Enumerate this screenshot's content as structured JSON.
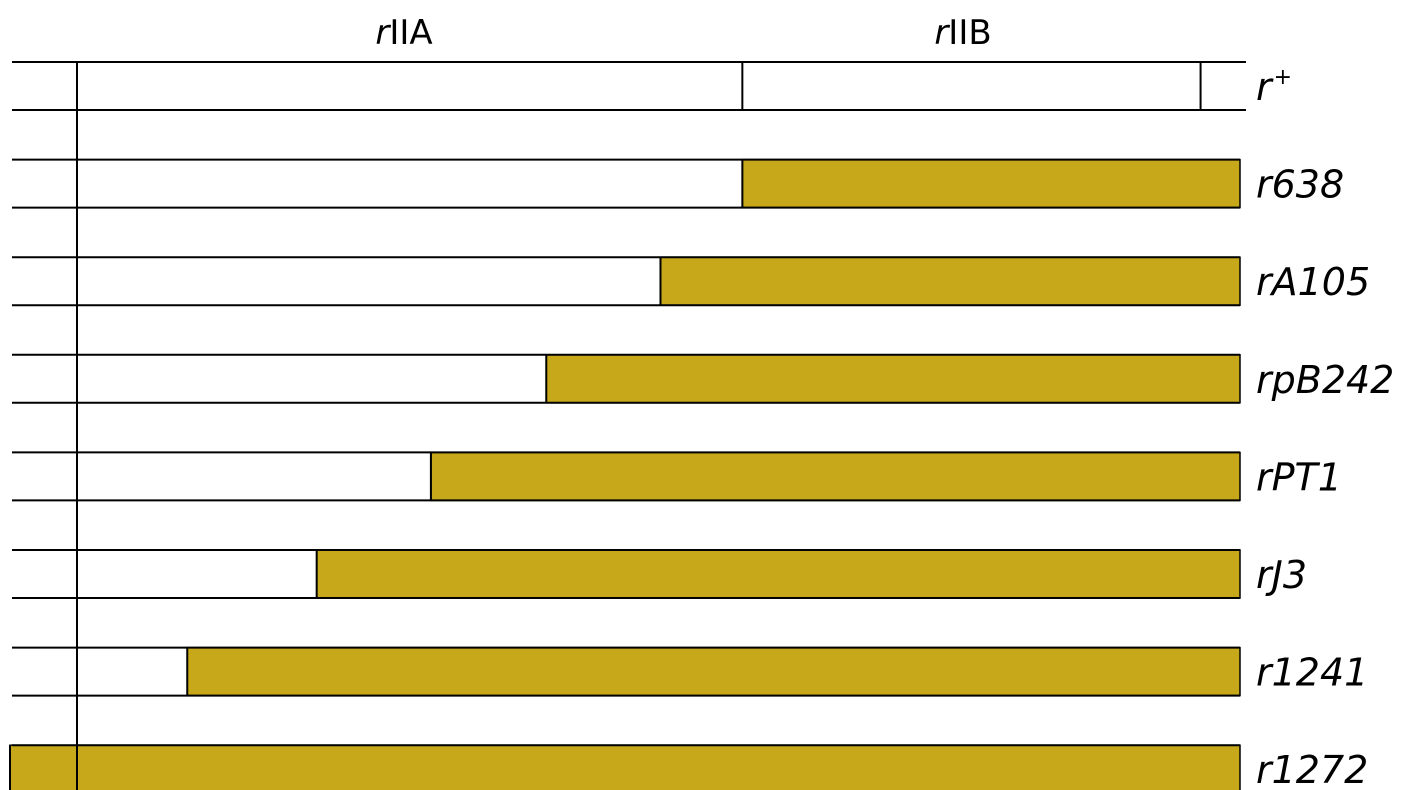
{
  "genes": [
    {
      "prefix": "r",
      "name": "IIA"
    },
    {
      "prefix": "r",
      "name": "IIB"
    }
  ],
  "rows": [
    {
      "label": "r",
      "superscript": "+",
      "deletion_start": null,
      "type": "wildtype"
    },
    {
      "label": "r638",
      "superscript": "",
      "deletion_start": 0.5721,
      "type": "deletion"
    },
    {
      "label": "rA105",
      "superscript": "",
      "deletion_start": 0.5017,
      "type": "deletion"
    },
    {
      "label": "rpB242",
      "superscript": "",
      "deletion_start": 0.4035,
      "type": "deletion"
    },
    {
      "label": "rPT1",
      "superscript": "",
      "deletion_start": 0.3043,
      "type": "deletion"
    },
    {
      "label": "rJ3",
      "superscript": "",
      "deletion_start": 0.2061,
      "type": "deletion"
    },
    {
      "label": "r1241",
      "superscript": "",
      "deletion_start": 0.0948,
      "type": "deletion"
    },
    {
      "label": "r1272",
      "superscript": "",
      "deletion_start": -0.0576,
      "type": "deletion"
    }
  ],
  "wildtype_markers": [
    0.5721,
    0.9661
  ],
  "colors": {
    "deletion": "#c7a81a",
    "line": "#000000",
    "background": "#ffffff"
  }
}
